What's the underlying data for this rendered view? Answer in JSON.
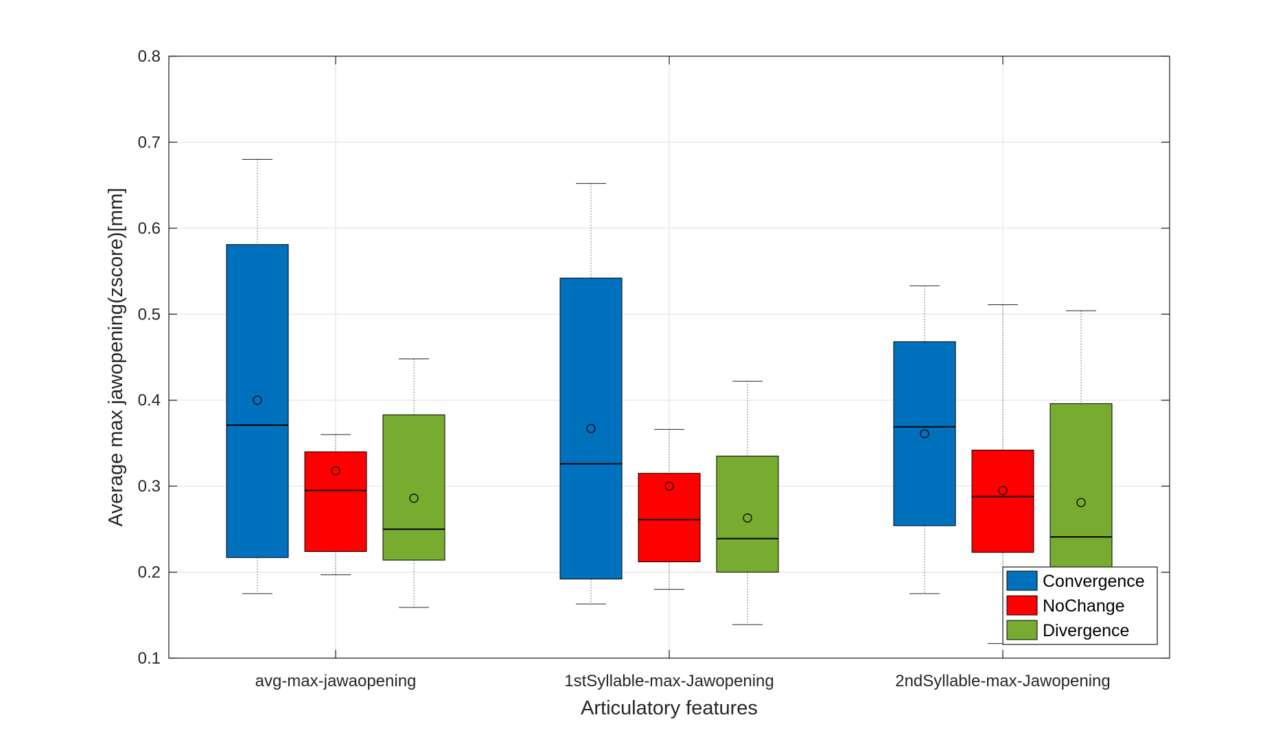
{
  "chart_data": {
    "type": "box",
    "xlabel": "Articulatory features",
    "ylabel": "Average max jawopening(zscore)[mm]",
    "ylim": [
      0.1,
      0.8
    ],
    "yticks": [
      "0.1",
      "0.2",
      "0.3",
      "0.4",
      "0.5",
      "0.6",
      "0.7",
      "0.8"
    ],
    "grid": true,
    "legend_position": "bottom-right",
    "categories": [
      "avg-max-jawaopening",
      "1stSyllable-max-Jawopening",
      "2ndSyllable-max-Jawopening"
    ],
    "series": [
      {
        "name": "Convergence",
        "color": "#0072BD",
        "boxes": [
          {
            "whisker_low": 0.175,
            "q1": 0.217,
            "median": 0.371,
            "q3": 0.581,
            "whisker_high": 0.68,
            "mean": 0.4
          },
          {
            "whisker_low": 0.163,
            "q1": 0.192,
            "median": 0.326,
            "q3": 0.542,
            "whisker_high": 0.652,
            "mean": 0.367
          },
          {
            "whisker_low": 0.175,
            "q1": 0.254,
            "median": 0.369,
            "q3": 0.468,
            "whisker_high": 0.533,
            "mean": 0.361
          }
        ]
      },
      {
        "name": "NoChange",
        "color": "#FF0000",
        "boxes": [
          {
            "whisker_low": 0.197,
            "q1": 0.224,
            "median": 0.295,
            "q3": 0.34,
            "whisker_high": 0.36,
            "mean": 0.318
          },
          {
            "whisker_low": 0.18,
            "q1": 0.212,
            "median": 0.261,
            "q3": 0.315,
            "whisker_high": 0.366,
            "mean": 0.3
          },
          {
            "whisker_low": 0.117,
            "q1": 0.223,
            "median": 0.288,
            "q3": 0.342,
            "whisker_high": 0.511,
            "mean": 0.295
          }
        ]
      },
      {
        "name": "Divergence",
        "color": "#77AC30",
        "boxes": [
          {
            "whisker_low": 0.159,
            "q1": 0.214,
            "median": 0.25,
            "q3": 0.383,
            "whisker_high": 0.448,
            "mean": 0.286
          },
          {
            "whisker_low": 0.139,
            "q1": 0.2,
            "median": 0.239,
            "q3": 0.335,
            "whisker_high": 0.422,
            "mean": 0.263
          },
          {
            "whisker_low": 0.2,
            "q1": 0.2,
            "median": 0.241,
            "q3": 0.396,
            "whisker_high": 0.504,
            "mean": 0.281
          }
        ]
      }
    ]
  }
}
